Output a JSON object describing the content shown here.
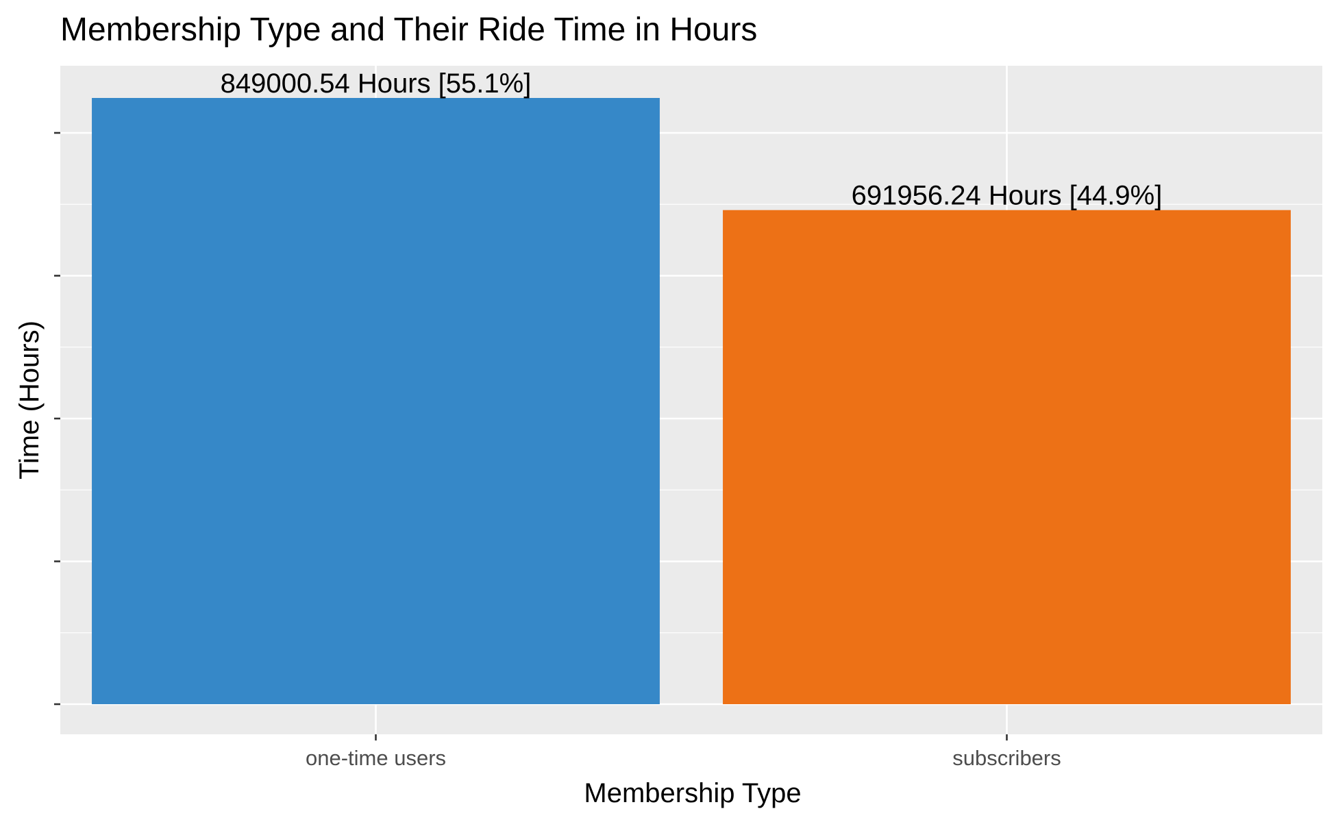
{
  "chart_data": {
    "type": "bar",
    "title": "Membership Type and Their Ride Time in Hours",
    "xlabel": "Membership Type",
    "ylabel": "Time (Hours)",
    "categories": [
      "one-time users",
      "subscribers"
    ],
    "values": [
      849000.54,
      691956.24
    ],
    "data_labels": [
      "849000.54 Hours [55.1%]",
      "691956.24 Hours [44.9%]"
    ],
    "colors": [
      "#3688c8",
      "#ed7116"
    ],
    "ylim": [
      0,
      891450.57
    ],
    "y_tick_labels_shown": false,
    "grid": true,
    "background": "#ebebeb",
    "legend": "none"
  }
}
